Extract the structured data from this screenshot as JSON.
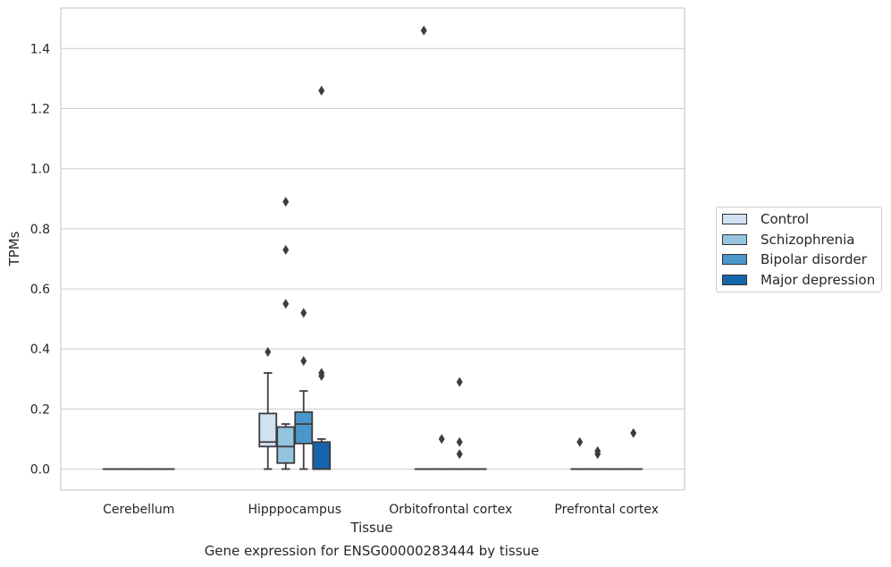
{
  "chart_data": {
    "type": "box",
    "caption": "Gene expression for ENSG00000283444 by tissue",
    "xlabel": "Tissue",
    "ylabel": "TPMs",
    "ylim": [
      -0.07,
      1.535
    ],
    "yticks": [
      "0.0",
      "0.2",
      "0.4",
      "0.6",
      "0.8",
      "1.0",
      "1.2",
      "1.4"
    ],
    "ytick_values": [
      0.0,
      0.2,
      0.4,
      0.6,
      0.8,
      1.0,
      1.2,
      1.4
    ],
    "grid": true,
    "legend_position": "right",
    "categories": [
      "Cerebellum",
      "Hipppocampus",
      "Orbitofrontal cortex",
      "Prefrontal cortex"
    ],
    "series": [
      {
        "name": "Control",
        "color": "#d0e1f2",
        "boxes": [
          {
            "q1": 0.0,
            "median": 0.0,
            "q3": 0.0,
            "whislo": 0.0,
            "whishi": 0.0,
            "fliers": []
          },
          {
            "q1": 0.075,
            "median": 0.09,
            "q3": 0.185,
            "whislo": 0.0,
            "whishi": 0.32,
            "fliers": [
              0.39
            ]
          },
          {
            "q1": 0.0,
            "median": 0.0,
            "q3": 0.0,
            "whislo": 0.0,
            "whishi": 0.0,
            "fliers": [
              1.46
            ]
          },
          {
            "q1": 0.0,
            "median": 0.0,
            "q3": 0.0,
            "whislo": 0.0,
            "whishi": 0.0,
            "fliers": [
              0.09
            ]
          }
        ]
      },
      {
        "name": "Schizophrenia",
        "color": "#94c4df",
        "boxes": [
          {
            "q1": 0.0,
            "median": 0.0,
            "q3": 0.0,
            "whislo": 0.0,
            "whishi": 0.0,
            "fliers": []
          },
          {
            "q1": 0.02,
            "median": 0.075,
            "q3": 0.14,
            "whislo": 0.0,
            "whishi": 0.15,
            "fliers": [
              0.89,
              0.73,
              0.55
            ]
          },
          {
            "q1": 0.0,
            "median": 0.0,
            "q3": 0.0,
            "whislo": 0.0,
            "whishi": 0.0,
            "fliers": [
              0.1
            ]
          },
          {
            "q1": 0.0,
            "median": 0.0,
            "q3": 0.0,
            "whislo": 0.0,
            "whishi": 0.0,
            "fliers": [
              0.06,
              0.05
            ]
          }
        ]
      },
      {
        "name": "Bipolar disorder",
        "color": "#4a98c9",
        "boxes": [
          {
            "q1": 0.0,
            "median": 0.0,
            "q3": 0.0,
            "whislo": 0.0,
            "whishi": 0.0,
            "fliers": []
          },
          {
            "q1": 0.085,
            "median": 0.15,
            "q3": 0.19,
            "whislo": 0.0,
            "whishi": 0.26,
            "fliers": [
              0.52,
              0.36
            ]
          },
          {
            "q1": 0.0,
            "median": 0.0,
            "q3": 0.0,
            "whislo": 0.0,
            "whishi": 0.0,
            "fliers": [
              0.29,
              0.09,
              0.05
            ]
          },
          {
            "q1": 0.0,
            "median": 0.0,
            "q3": 0.0,
            "whislo": 0.0,
            "whishi": 0.0,
            "fliers": []
          }
        ]
      },
      {
        "name": "Major depression",
        "color": "#1764ab",
        "boxes": [
          {
            "q1": 0.0,
            "median": 0.0,
            "q3": 0.0,
            "whislo": 0.0,
            "whishi": 0.0,
            "fliers": []
          },
          {
            "q1": 0.0,
            "median": 0.0,
            "q3": 0.09,
            "whislo": 0.0,
            "whishi": 0.1,
            "fliers": [
              1.26,
              0.32,
              0.31
            ]
          },
          {
            "q1": 0.0,
            "median": 0.0,
            "q3": 0.0,
            "whislo": 0.0,
            "whishi": 0.0,
            "fliers": []
          },
          {
            "q1": 0.0,
            "median": 0.0,
            "q3": 0.0,
            "whislo": 0.0,
            "whishi": 0.0,
            "fliers": [
              0.12
            ]
          }
        ]
      }
    ]
  }
}
